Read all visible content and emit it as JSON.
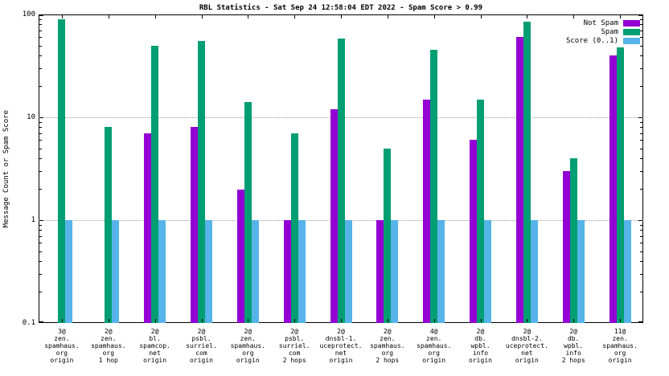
{
  "chart": {
    "title": "RBL Statistics - Sat Sep 24 12:58:04 EDT 2022 - Spam Score > 0.99",
    "ylabel": "Message Count or Spam Score"
  },
  "chart_data": {
    "type": "bar",
    "y_scale": "log10",
    "ylim": [
      0.1,
      100
    ],
    "y_ticks": [
      "0.1",
      "1",
      "10",
      "100"
    ],
    "grid": true,
    "legend_position": "top-right",
    "categories": [
      [
        "3@",
        "zen.",
        "spamhaus.",
        "org",
        "origin"
      ],
      [
        "2@",
        "zen.",
        "spamhaus.",
        "org",
        "1 hop"
      ],
      [
        "2@",
        "bl.",
        "spamcop.",
        "net",
        "origin"
      ],
      [
        "2@",
        "psbl.",
        "surriel.",
        "com",
        "origin"
      ],
      [
        "2@",
        "zen.",
        "spamhaus.",
        "org",
        "origin"
      ],
      [
        "2@",
        "psbl.",
        "surriel.",
        "com",
        "2 hops"
      ],
      [
        "2@",
        "dnsbl-1.",
        "uceprotect.",
        "net",
        "origin"
      ],
      [
        "2@",
        "zen.",
        "spamhaus.",
        "org",
        "2 hops"
      ],
      [
        "4@",
        "zen.",
        "spamhaus.",
        "org",
        "origin"
      ],
      [
        "2@",
        "db.",
        "wpbl.",
        "info",
        "origin"
      ],
      [
        "2@",
        "dnsbl-2.",
        "uceprotect.",
        "net",
        "origin"
      ],
      [
        "2@",
        "db.",
        "wpbl.",
        "info",
        "2 hops"
      ],
      [
        "11@",
        "zen.",
        "spamhaus.",
        "org",
        "origin"
      ]
    ],
    "series": [
      {
        "name": "Not Spam",
        "color": "#9400d3",
        "values": [
          0,
          0,
          7,
          8,
          2,
          1,
          12,
          1,
          15,
          6,
          60,
          3,
          40
        ]
      },
      {
        "name": "Spam",
        "color": "#009e73",
        "values": [
          90,
          8,
          50,
          55,
          14,
          7,
          58,
          5,
          45,
          15,
          85,
          4,
          48
        ]
      },
      {
        "name": "Score (0..1)",
        "color": "#56b4e9",
        "values": [
          1,
          1,
          1,
          1,
          1,
          1,
          1,
          1,
          1,
          1,
          1,
          1,
          1
        ]
      }
    ]
  }
}
